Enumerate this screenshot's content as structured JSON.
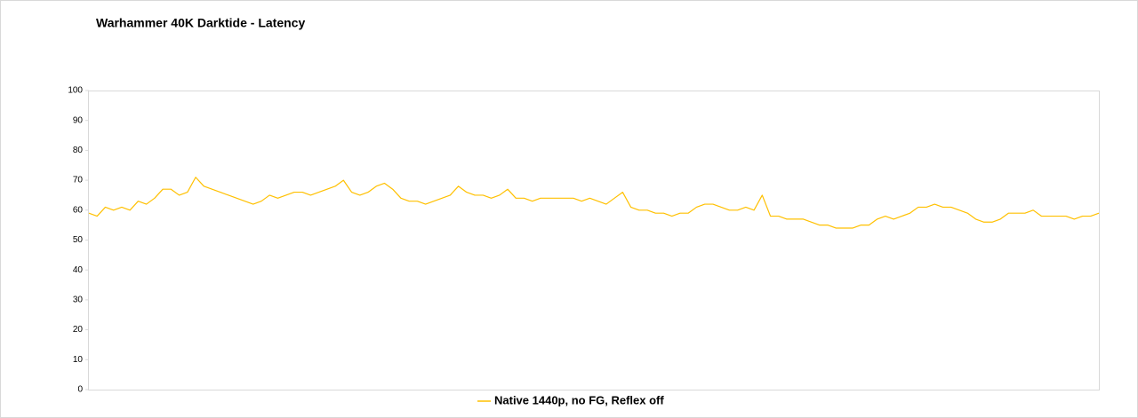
{
  "chart_data": {
    "type": "line",
    "title": "Warhammer 40K Darktide - Latency",
    "ylim": [
      0,
      100
    ],
    "yticks": [
      0,
      10,
      20,
      30,
      40,
      50,
      60,
      70,
      80,
      90,
      100
    ],
    "grid": false,
    "legend": "bottom",
    "series": [
      {
        "name": "Native 1440p, no FG, Reflex off",
        "color": "#ffc000",
        "values": [
          59,
          58,
          61,
          60,
          61,
          60,
          63,
          62,
          64,
          67,
          67,
          65,
          66,
          71,
          68,
          67,
          66,
          65,
          64,
          63,
          62,
          63,
          65,
          64,
          65,
          66,
          66,
          65,
          66,
          67,
          68,
          70,
          66,
          65,
          66,
          68,
          69,
          67,
          64,
          63,
          63,
          62,
          63,
          64,
          65,
          68,
          66,
          65,
          65,
          64,
          65,
          67,
          64,
          64,
          63,
          64,
          64,
          64,
          64,
          64,
          63,
          64,
          63,
          62,
          64,
          66,
          61,
          60,
          60,
          59,
          59,
          58,
          59,
          59,
          61,
          62,
          62,
          61,
          60,
          60,
          61,
          60,
          65,
          58,
          58,
          57,
          57,
          57,
          56,
          55,
          55,
          54,
          54,
          54,
          55,
          55,
          57,
          58,
          57,
          58,
          59,
          61,
          61,
          62,
          61,
          61,
          60,
          59,
          57,
          56,
          56,
          57,
          59,
          59,
          59,
          60,
          58,
          58,
          58,
          58,
          57,
          58,
          58,
          59
        ]
      }
    ]
  }
}
